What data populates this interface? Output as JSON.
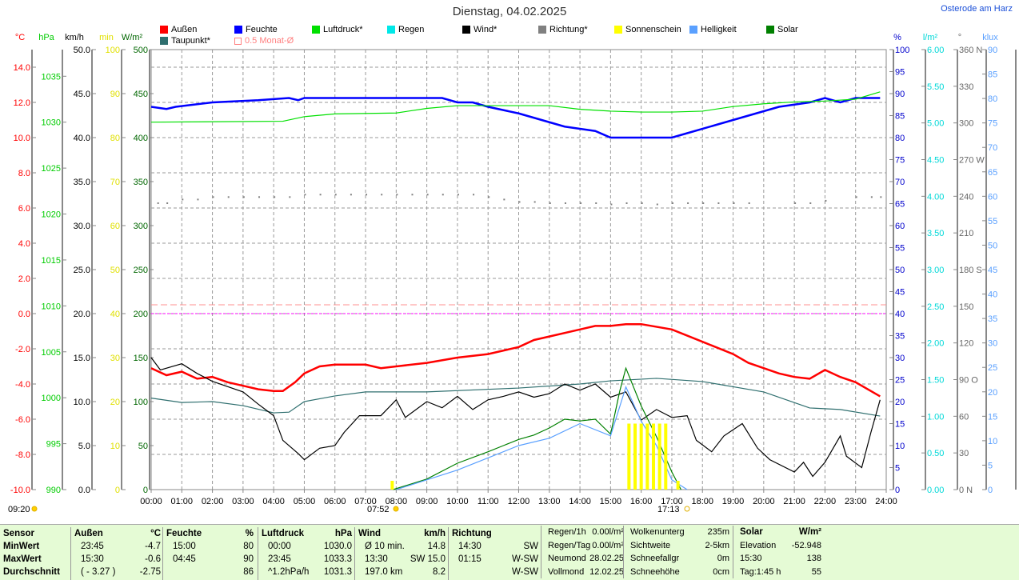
{
  "title": "Dienstag, 04.02.2025",
  "location": "Osterode am Harz",
  "axes_units": {
    "temp": "°C",
    "hpa": "hPa",
    "kmh": "km/h",
    "min": "min",
    "wm2": "W/m²",
    "pct": "%",
    "lm2": "l/m²",
    "deg": "°",
    "klux": "klux"
  },
  "legend": [
    {
      "label": "Außen",
      "color": "#ff0000"
    },
    {
      "label": "Feuchte",
      "color": "#0000ff"
    },
    {
      "label": "Luftdruck*",
      "color": "#00e000"
    },
    {
      "label": "Regen",
      "color": "#00e8e8"
    },
    {
      "label": "Wind*",
      "color": "#000000"
    },
    {
      "label": "Richtung*",
      "color": "#808080"
    },
    {
      "label": "Sonnenschein",
      "color": "#ffff00"
    },
    {
      "label": "Helligkeit",
      "color": "#5aa0ff"
    },
    {
      "label": "Solar",
      "color": "#008000"
    },
    {
      "label": "Taupunkt*",
      "color": "#2f6f6f"
    },
    {
      "label": "0.5 Monat-Ø",
      "color": "#ff8080"
    }
  ],
  "sun": {
    "now": "09:20",
    "sunrise": "07:52",
    "sunset": "17:13"
  },
  "chart_data": {
    "type": "line",
    "title": "Dienstag, 04.02.2025",
    "xlabel": "",
    "xlim": [
      0,
      24
    ],
    "x_ticks": [
      "00:00",
      "01:00",
      "02:00",
      "03:00",
      "04:00",
      "05:00",
      "06:00",
      "07:00",
      "08:00",
      "09:00",
      "10:00",
      "11:00",
      "12:00",
      "13:00",
      "14:00",
      "15:00",
      "16:00",
      "17:00",
      "18:00",
      "19:00",
      "20:00",
      "21:00",
      "22:00",
      "23:00",
      "24:00"
    ],
    "left_axes": [
      {
        "unit": "°C",
        "ylim": [
          -10,
          15
        ],
        "ticks": [
          "14.0",
          "12.0",
          "10.0",
          "8.0",
          "6.0",
          "4.0",
          "2.0",
          "0.0",
          "-2.0",
          "-4.0",
          "-6.0",
          "-8.0",
          "-10.0"
        ]
      },
      {
        "unit": "hPa",
        "ylim": [
          990,
          1037.9
        ],
        "ticks": [
          "1035",
          "1030",
          "1025",
          "1020",
          "1015",
          "1010",
          "1005",
          "1000",
          "995",
          "990"
        ]
      },
      {
        "unit": "km/h",
        "ylim": [
          0,
          50
        ],
        "ticks": [
          "50.0",
          "45.0",
          "40.0",
          "35.0",
          "30.0",
          "25.0",
          "20.0",
          "15.0",
          "10.0",
          "5.0",
          "0.0"
        ]
      },
      {
        "unit": "min",
        "ylim": [
          0,
          100
        ],
        "ticks": [
          "100",
          "90",
          "80",
          "70",
          "60",
          "50",
          "40",
          "30",
          "20",
          "10",
          "0"
        ]
      },
      {
        "unit": "W/m²",
        "ylim": [
          0,
          500
        ],
        "ticks": [
          "500",
          "450",
          "400",
          "350",
          "300",
          "250",
          "200",
          "150",
          "100",
          "50",
          "0"
        ]
      }
    ],
    "right_axes": [
      {
        "unit": "%",
        "ylim": [
          0,
          100
        ],
        "ticks": [
          "100",
          "95",
          "90",
          "85",
          "80",
          "75",
          "70",
          "65",
          "60",
          "55",
          "50",
          "45",
          "40",
          "35",
          "30",
          "25",
          "20",
          "15",
          "10",
          "5",
          "0"
        ]
      },
      {
        "unit": "l/m²",
        "ylim": [
          0,
          6
        ],
        "ticks": [
          "6.00",
          "5.50",
          "5.00",
          "4.50",
          "4.00",
          "3.50",
          "3.00",
          "2.50",
          "2.00",
          "1.50",
          "1.00",
          "0.50",
          "0.00"
        ]
      },
      {
        "unit": "°",
        "ylim": [
          0,
          360
        ],
        "ticks": [
          "360 N",
          "330",
          "300",
          "270 W",
          "240",
          "210",
          "180 S",
          "150",
          "120",
          "90 O",
          "60",
          "30",
          "0 N"
        ]
      },
      {
        "unit": "klux",
        "ylim": [
          0,
          90
        ],
        "ticks": [
          "90",
          "85",
          "80",
          "75",
          "70",
          "65",
          "60",
          "55",
          "50",
          "45",
          "40",
          "35",
          "30",
          "25",
          "20",
          "15",
          "10",
          "5",
          "0"
        ]
      }
    ],
    "series": [
      {
        "name": "Feuchte",
        "axis": "%",
        "color": "#0000ff",
        "x": [
          0,
          0.5,
          0.8,
          2,
          3.5,
          4.5,
          4.8,
          5,
          9.5,
          10,
          10.5,
          11,
          12,
          12.5,
          13,
          13.5,
          14,
          14.5,
          15,
          17,
          17.5,
          18.5,
          19.5,
          20.5,
          21.5,
          22,
          22.5,
          23,
          23.8
        ],
        "y": [
          87,
          86.5,
          87,
          88,
          88.5,
          89,
          88.5,
          89,
          89,
          88,
          88,
          87,
          85.5,
          84.5,
          83.5,
          82.5,
          82,
          81.5,
          80,
          80,
          81,
          83,
          85,
          87,
          88,
          89,
          88,
          89,
          89
        ]
      },
      {
        "name": "Luftdruck",
        "axis": "hPa",
        "color": "#00e000",
        "x": [
          0,
          4.3,
          5,
          6,
          8,
          9,
          10,
          11,
          12,
          13,
          14,
          15,
          16,
          17,
          18,
          19,
          20,
          21,
          22,
          23,
          23.8
        ],
        "y": [
          1030.0,
          1030.1,
          1030.6,
          1030.9,
          1031.0,
          1031.5,
          1031.8,
          1031.8,
          1031.8,
          1031.8,
          1031.4,
          1031.2,
          1031.1,
          1031.1,
          1031.2,
          1031.7,
          1032.0,
          1032.2,
          1032.3,
          1032.5,
          1033.3
        ]
      },
      {
        "name": "Außen",
        "axis": "°C",
        "color": "#ff0000",
        "x": [
          0,
          0.5,
          1,
          1.5,
          2,
          2.5,
          3,
          3.5,
          4,
          4.3,
          4.7,
          5,
          5.5,
          6,
          7,
          7.5,
          8,
          9,
          10,
          11,
          12,
          12.5,
          13,
          14,
          14.5,
          15,
          15.5,
          16,
          17,
          18,
          19,
          19.5,
          20,
          20.5,
          21,
          21.5,
          22,
          22.5,
          23,
          23.5,
          23.8
        ],
        "y": [
          -3.1,
          -3.5,
          -3.3,
          -3.7,
          -3.6,
          -3.9,
          -4.1,
          -4.3,
          -4.4,
          -4.4,
          -3.9,
          -3.4,
          -3.0,
          -2.9,
          -2.9,
          -3.1,
          -3.0,
          -2.8,
          -2.5,
          -2.3,
          -1.9,
          -1.5,
          -1.3,
          -0.9,
          -0.7,
          -0.7,
          -0.6,
          -0.6,
          -0.9,
          -1.6,
          -2.3,
          -2.8,
          -3.1,
          -3.4,
          -3.6,
          -3.7,
          -3.2,
          -3.6,
          -3.9,
          -4.4,
          -4.7
        ]
      },
      {
        "name": "Taupunkt",
        "axis": "°C",
        "color": "#2f6f6f",
        "x": [
          0,
          1,
          2,
          3,
          4,
          4.5,
          5,
          6,
          7,
          9,
          12,
          14,
          15,
          16.5,
          18,
          20,
          21.5,
          22.5,
          23.8
        ],
        "y": [
          -4.8,
          -5.05,
          -5.0,
          -5.23,
          -5.64,
          -5.6,
          -5.0,
          -4.68,
          -4.45,
          -4.45,
          -4.23,
          -4.0,
          -3.82,
          -3.68,
          -3.86,
          -4.45,
          -5.36,
          -5.45,
          -5.82
        ]
      },
      {
        "name": "Wind",
        "axis": "km/h",
        "color": "#000000",
        "x": [
          0,
          0.3,
          1,
          1.5,
          2,
          3,
          3.5,
          4,
          4.3,
          4.8,
          5,
          5.5,
          6,
          6.3,
          6.8,
          7.5,
          8,
          8.3,
          9,
          9.5,
          10,
          10.5,
          11,
          11.5,
          12,
          12.5,
          13,
          13.5,
          14,
          14.5,
          15,
          15.5,
          16,
          16.5,
          17,
          17.5,
          17.8,
          18.3,
          18.7,
          19.3,
          19.8,
          20.2,
          21,
          21.3,
          21.6,
          22,
          22.5,
          22.7,
          23.2,
          23.5,
          23.8
        ],
        "y": [
          15.0,
          13.6,
          14.3,
          13.2,
          12.3,
          11.1,
          9.7,
          8.4,
          5.6,
          4.1,
          3.4,
          4.7,
          5.0,
          6.5,
          8.4,
          8.4,
          10.2,
          8.2,
          10.0,
          9.3,
          10.6,
          9.1,
          10.2,
          10.6,
          11.1,
          10.5,
          10.9,
          12.0,
          11.3,
          12.0,
          10.5,
          11.1,
          7.9,
          9.1,
          8.2,
          8.4,
          5.6,
          4.3,
          6.1,
          7.5,
          4.7,
          3.4,
          2.0,
          3.1,
          1.5,
          3.1,
          6.1,
          3.8,
          2.5,
          6.5,
          10.2
        ]
      },
      {
        "name": "Solar",
        "axis": "W/m²",
        "color": "#008000",
        "x": [
          7.9,
          9,
          10,
          11,
          11.5,
          12,
          12.5,
          13,
          13.5,
          14,
          14.5,
          15,
          15.3,
          15.5,
          16,
          16.5,
          17,
          17.3
        ],
        "y": [
          0,
          12,
          30,
          43,
          50,
          57,
          62,
          70,
          80,
          78,
          80,
          63,
          112,
          138,
          95,
          60,
          20,
          0
        ]
      },
      {
        "name": "Helligkeit",
        "axis": "klux",
        "color": "#5aa0ff",
        "x": [
          8,
          9,
          10,
          11,
          12,
          13,
          14,
          15,
          15.5,
          16,
          16.5,
          17,
          17.5
        ],
        "y": [
          0,
          2,
          4,
          6.5,
          9,
          10.5,
          13.5,
          11,
          21,
          14,
          9,
          2,
          0
        ]
      },
      {
        "name": "Richtung",
        "axis": "°",
        "color": "#808080",
        "style": "dots",
        "x": [
          0.2,
          0.5,
          1,
          1.5,
          2,
          2.5,
          3,
          3.5,
          4,
          4.5,
          5,
          5.5,
          6,
          6.5,
          7,
          7.5,
          8,
          8.5,
          9,
          9.5,
          10,
          10.5,
          11,
          11.5,
          12,
          12.5,
          13,
          13.5,
          14,
          14.5,
          15,
          15.5,
          16,
          16.5,
          17,
          17.5,
          18,
          18.5,
          19,
          19.5,
          20,
          21,
          21.5,
          22,
          22.5,
          23,
          23.5,
          23.8
        ],
        "y": [
          235,
          235,
          238,
          238,
          240,
          240,
          240,
          240,
          240,
          240,
          242,
          242,
          242,
          242,
          242,
          242,
          242,
          242,
          242,
          242,
          242,
          242,
          240,
          238,
          236,
          236,
          235,
          235,
          235,
          235,
          234,
          235,
          235,
          234,
          235,
          235,
          235,
          235,
          235,
          235,
          0,
          235,
          235,
          237,
          0,
          240,
          240,
          240
        ]
      },
      {
        "name": "Sonnenschein",
        "axis": "min",
        "color": "#ffff00",
        "style": "bars",
        "x": [
          7.87,
          15.6,
          15.8,
          16.0,
          16.2,
          16.4,
          16.6,
          16.8,
          17.2
        ],
        "y": [
          2,
          15,
          15,
          15,
          15,
          15,
          15,
          15,
          2
        ]
      }
    ],
    "reference_lines": [
      {
        "name": "0 °C",
        "axis": "°C",
        "value": 0,
        "color": "#ff00ff"
      },
      {
        "name": "0.5 Monat-Ø",
        "axis": "°C",
        "value": 0.5,
        "color": "#ff9090"
      }
    ]
  },
  "stats": {
    "sensor": {
      "header": "Sensor",
      "rows": [
        "MinWert",
        "MaxWert",
        "Durchschnitt"
      ]
    },
    "aussen": {
      "header": "Außen",
      "unit": "°C",
      "rows": [
        [
          "23:45",
          "-4.7"
        ],
        [
          "15:30",
          "-0.6"
        ],
        [
          "( - 3.27 )",
          "-2.75"
        ]
      ]
    },
    "feuchte": {
      "header": "Feuchte",
      "unit": "%",
      "rows": [
        [
          "15:00",
          "80"
        ],
        [
          "04:45",
          "90"
        ],
        [
          "",
          "86"
        ]
      ]
    },
    "luftdruck": {
      "header": "Luftdruck",
      "unit": "hPa",
      "rows": [
        [
          "00:00",
          "1030.0"
        ],
        [
          "23:45",
          "1033.3"
        ],
        [
          "^1.2hPa/h",
          "1031.3"
        ]
      ]
    },
    "wind": {
      "header": "Wind",
      "unit": "km/h",
      "rows": [
        [
          "Ø 10 min.",
          "14.8"
        ],
        [
          "13:30",
          "SW 15.0"
        ],
        [
          "197.0 km",
          "8.2"
        ]
      ]
    },
    "richtung": {
      "header": "Richtung",
      "rows": [
        [
          "14:30",
          "SW"
        ],
        [
          "01:15",
          "W-SW"
        ],
        [
          "",
          "W-SW"
        ]
      ]
    },
    "regen": {
      "rows": [
        [
          "Regen/1h",
          "0.00l/m²"
        ],
        [
          "Regen/Tag",
          "0.00l/m²"
        ],
        [
          "Neumond",
          "28.02.25"
        ],
        [
          "Vollmond",
          "12.02.25"
        ]
      ]
    },
    "wolken": {
      "rows": [
        [
          "Wolkenunterg",
          "235m"
        ],
        [
          "Sichtweite",
          "2-5km"
        ],
        [
          "Schneefallgr",
          "0m"
        ],
        [
          "Schneehöhe",
          "0cm"
        ]
      ]
    },
    "solar": {
      "header": "Solar",
      "unit": "W/m²",
      "rows": [
        [
          "Elevation",
          "-52.948"
        ],
        [
          "15:30",
          "138"
        ],
        [
          "Tag:1:45 h",
          "55"
        ]
      ]
    }
  }
}
